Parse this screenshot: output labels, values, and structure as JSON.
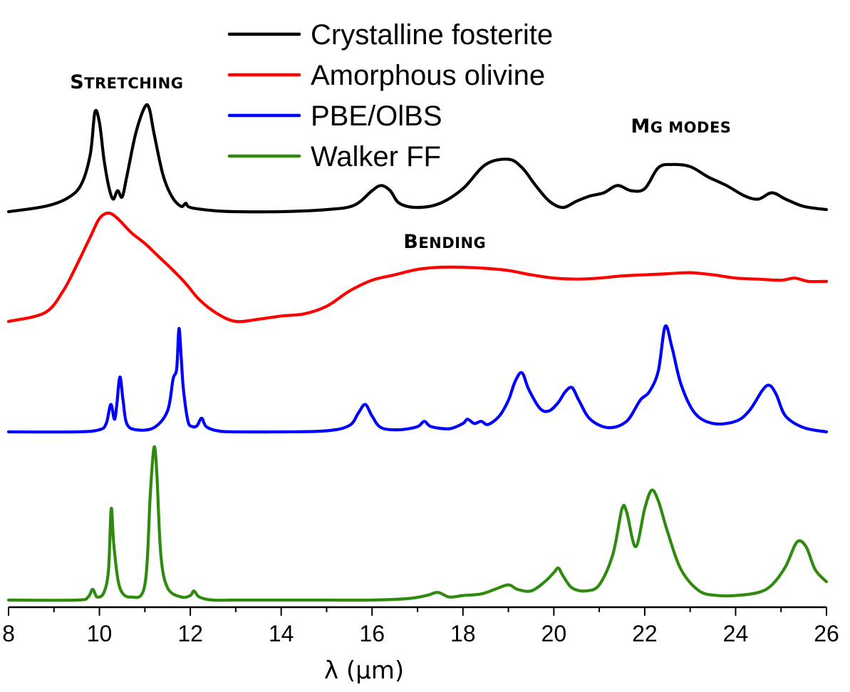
{
  "chart_data": {
    "type": "line",
    "title": "",
    "xlabel": "λ (μm)",
    "ylabel": "",
    "xlim": [
      8,
      26
    ],
    "x_ticks": [
      "8",
      "10",
      "12",
      "14",
      "16",
      "18",
      "20",
      "22",
      "24",
      "26"
    ],
    "grid": false,
    "legend_position": "top-center",
    "annotations": [
      {
        "text_main": "S",
        "text_small": "TRETCHING",
        "x": 10.6
      },
      {
        "text_main": "B",
        "text_small": "ENDING",
        "x": 17.6
      },
      {
        "text_main": "M",
        "text_small": "G MODES",
        "x": 22.8
      }
    ],
    "series": [
      {
        "name": "Crystalline fosterite",
        "color": "#000000",
        "x": [
          8.0,
          8.8,
          9.3,
          9.6,
          9.8,
          9.9,
          10.0,
          10.1,
          10.2,
          10.3,
          10.4,
          10.5,
          10.6,
          10.8,
          11.0,
          11.1,
          11.2,
          11.4,
          11.6,
          11.8,
          11.9,
          12.0,
          12.5,
          13.0,
          14.0,
          15.0,
          15.6,
          16.0,
          16.2,
          16.4,
          16.6,
          17.0,
          17.5,
          18.0,
          18.5,
          19.0,
          19.3,
          19.6,
          19.9,
          20.2,
          20.5,
          20.8,
          21.1,
          21.4,
          21.7,
          22.0,
          22.3,
          22.6,
          23.0,
          23.4,
          23.8,
          24.2,
          24.5,
          24.8,
          25.1,
          25.5,
          26.0
        ],
        "values": [
          0.0,
          0.05,
          0.13,
          0.26,
          0.55,
          0.95,
          0.85,
          0.5,
          0.25,
          0.12,
          0.2,
          0.14,
          0.33,
          0.75,
          1.0,
          0.98,
          0.75,
          0.35,
          0.14,
          0.05,
          0.08,
          0.04,
          0.01,
          0.0,
          0.0,
          0.02,
          0.06,
          0.2,
          0.25,
          0.2,
          0.08,
          0.04,
          0.08,
          0.22,
          0.45,
          0.5,
          0.42,
          0.25,
          0.1,
          0.04,
          0.1,
          0.15,
          0.18,
          0.25,
          0.2,
          0.22,
          0.42,
          0.45,
          0.43,
          0.33,
          0.25,
          0.15,
          0.12,
          0.18,
          0.12,
          0.05,
          0.02
        ]
      },
      {
        "name": "Amorphous olivine",
        "color": "#ff0000",
        "x": [
          8.0,
          8.8,
          9.2,
          9.5,
          9.8,
          10.0,
          10.2,
          10.4,
          10.7,
          11.0,
          11.3,
          11.6,
          11.9,
          12.2,
          12.6,
          13.0,
          13.5,
          14.0,
          14.5,
          15.0,
          15.5,
          16.0,
          16.5,
          17.0,
          17.5,
          18.0,
          18.5,
          19.0,
          19.5,
          20.0,
          20.5,
          21.0,
          21.5,
          22.0,
          22.5,
          23.0,
          23.5,
          24.0,
          24.5,
          25.0,
          25.3,
          25.6,
          26.0
        ],
        "values": [
          0.0,
          0.08,
          0.28,
          0.52,
          0.78,
          0.95,
          1.0,
          0.95,
          0.82,
          0.72,
          0.6,
          0.48,
          0.35,
          0.2,
          0.07,
          0.0,
          0.02,
          0.05,
          0.07,
          0.14,
          0.28,
          0.38,
          0.43,
          0.48,
          0.5,
          0.5,
          0.49,
          0.47,
          0.43,
          0.4,
          0.39,
          0.4,
          0.42,
          0.43,
          0.44,
          0.45,
          0.43,
          0.4,
          0.39,
          0.38,
          0.4,
          0.37,
          0.37
        ]
      },
      {
        "name": "PBE/OlBS",
        "color": "#0000ff",
        "x": [
          8.0,
          9.5,
          10.0,
          10.15,
          10.25,
          10.33,
          10.38,
          10.45,
          10.52,
          10.6,
          10.8,
          11.2,
          11.5,
          11.62,
          11.7,
          11.75,
          11.8,
          11.85,
          11.95,
          12.05,
          12.15,
          12.25,
          12.35,
          12.6,
          13.0,
          14.0,
          15.0,
          15.5,
          15.7,
          15.85,
          16.0,
          16.2,
          16.6,
          17.0,
          17.15,
          17.3,
          17.7,
          18.0,
          18.1,
          18.25,
          18.4,
          18.55,
          18.8,
          19.0,
          19.15,
          19.3,
          19.45,
          19.7,
          19.9,
          20.1,
          20.25,
          20.4,
          20.55,
          20.8,
          21.2,
          21.6,
          21.9,
          22.1,
          22.3,
          22.45,
          22.6,
          22.8,
          23.1,
          23.5,
          24.0,
          24.3,
          24.6,
          24.75,
          24.9,
          25.1,
          25.5,
          26.0
        ],
        "values": [
          0.0,
          0.0,
          0.02,
          0.08,
          0.26,
          0.12,
          0.25,
          0.52,
          0.3,
          0.08,
          0.02,
          0.04,
          0.2,
          0.5,
          0.6,
          0.98,
          0.7,
          0.4,
          0.1,
          0.05,
          0.06,
          0.13,
          0.05,
          0.01,
          0.0,
          0.0,
          0.01,
          0.06,
          0.18,
          0.26,
          0.15,
          0.04,
          0.02,
          0.05,
          0.1,
          0.05,
          0.03,
          0.08,
          0.12,
          0.08,
          0.1,
          0.07,
          0.15,
          0.3,
          0.48,
          0.56,
          0.4,
          0.22,
          0.2,
          0.28,
          0.38,
          0.42,
          0.3,
          0.12,
          0.04,
          0.1,
          0.3,
          0.38,
          0.58,
          1.0,
          0.8,
          0.45,
          0.18,
          0.08,
          0.1,
          0.2,
          0.4,
          0.44,
          0.35,
          0.15,
          0.04,
          0.0
        ]
      },
      {
        "name": "Walker FF",
        "color": "#2e8b0e",
        "x": [
          8.0,
          9.5,
          9.75,
          9.85,
          9.95,
          10.1,
          10.2,
          10.26,
          10.32,
          10.45,
          10.7,
          11.0,
          11.12,
          11.2,
          11.26,
          11.35,
          11.5,
          11.8,
          12.0,
          12.08,
          12.2,
          12.5,
          13.0,
          14.0,
          15.0,
          16.0,
          16.8,
          17.2,
          17.45,
          17.7,
          18.0,
          18.4,
          18.7,
          19.0,
          19.2,
          19.5,
          19.8,
          20.0,
          20.1,
          20.2,
          20.4,
          20.7,
          21.0,
          21.3,
          21.5,
          21.6,
          21.8,
          22.0,
          22.15,
          22.3,
          22.5,
          22.8,
          23.2,
          23.6,
          24.0,
          24.5,
          24.8,
          25.1,
          25.35,
          25.55,
          25.75,
          26.0
        ],
        "values": [
          0.0,
          0.0,
          0.02,
          0.07,
          0.02,
          0.05,
          0.2,
          0.6,
          0.35,
          0.08,
          0.02,
          0.1,
          0.7,
          1.0,
          0.85,
          0.3,
          0.08,
          0.02,
          0.03,
          0.06,
          0.02,
          0.0,
          0.0,
          0.0,
          0.0,
          0.0,
          0.01,
          0.03,
          0.05,
          0.02,
          0.03,
          0.04,
          0.07,
          0.1,
          0.07,
          0.06,
          0.12,
          0.18,
          0.21,
          0.16,
          0.08,
          0.06,
          0.1,
          0.3,
          0.6,
          0.58,
          0.35,
          0.6,
          0.72,
          0.65,
          0.45,
          0.2,
          0.06,
          0.03,
          0.03,
          0.05,
          0.1,
          0.22,
          0.38,
          0.35,
          0.2,
          0.12
        ]
      }
    ]
  }
}
